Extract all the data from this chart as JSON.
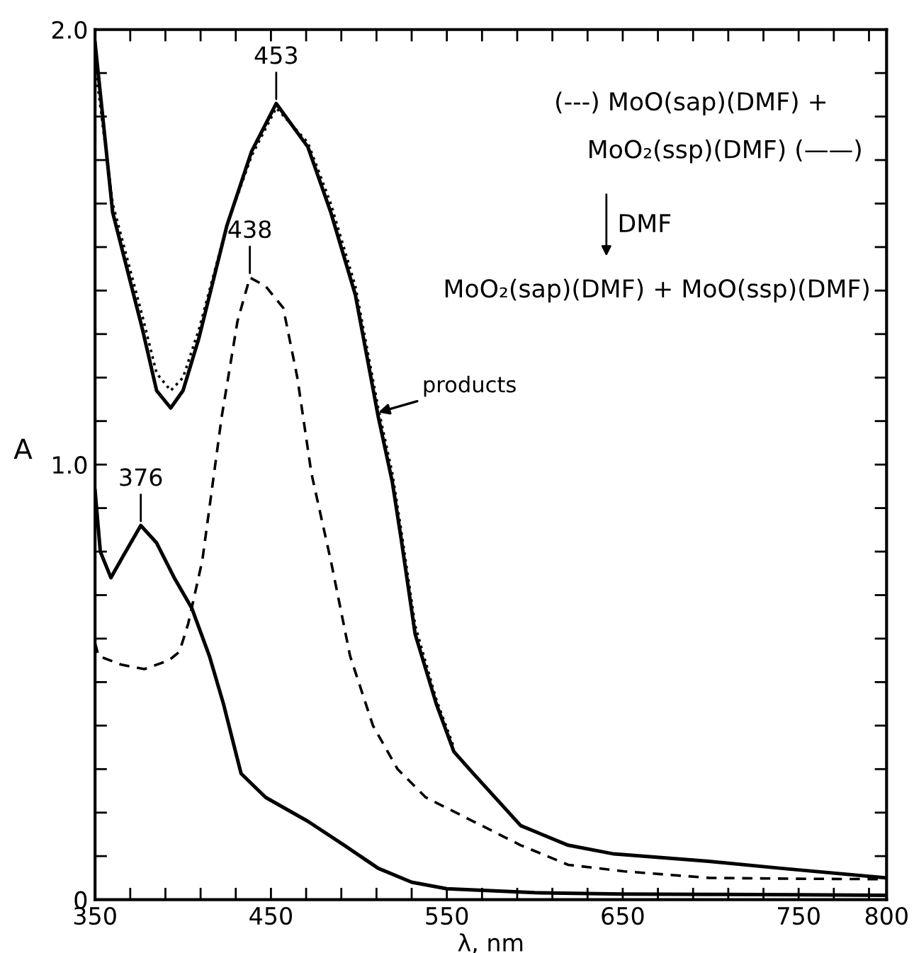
{
  "chart_data": {
    "type": "line",
    "xlabel": "λ, nm",
    "ylabel": "A",
    "xlim": [
      350,
      800
    ],
    "ylim": [
      0,
      2.0
    ],
    "xticks": [
      350,
      {
        "value": 370,
        "label": null
      },
      {
        "value": 390,
        "label": null
      },
      {
        "value": 410,
        "label": null
      },
      {
        "value": 430,
        "label": null
      },
      450,
      {
        "value": 470,
        "label": null
      },
      {
        "value": 490,
        "label": null
      },
      {
        "value": 510,
        "label": null
      },
      {
        "value": 530,
        "label": null
      },
      550,
      {
        "value": 570,
        "label": null
      },
      {
        "value": 590,
        "label": null
      },
      {
        "value": 610,
        "label": null
      },
      {
        "value": 630,
        "label": null
      },
      650,
      {
        "value": 670,
        "label": null
      },
      {
        "value": 690,
        "label": null
      },
      {
        "value": 710,
        "label": null
      },
      {
        "value": 730,
        "label": null
      },
      750,
      {
        "value": 770,
        "label": null
      },
      {
        "value": 790,
        "label": null
      },
      800
    ],
    "yticks": [
      {
        "value": 0,
        "label": "0"
      },
      {
        "value": 0.1,
        "label": null
      },
      {
        "value": 0.2,
        "label": null
      },
      {
        "value": 0.3,
        "label": null
      },
      {
        "value": 0.4,
        "label": null
      },
      {
        "value": 0.5,
        "label": null
      },
      {
        "value": 0.6,
        "label": null
      },
      {
        "value": 0.7,
        "label": null
      },
      {
        "value": 0.8,
        "label": null
      },
      {
        "value": 0.9,
        "label": null
      },
      {
        "value": 1.0,
        "label": "1.0"
      },
      {
        "value": 1.1,
        "label": null
      },
      {
        "value": 1.2,
        "label": null
      },
      {
        "value": 1.3,
        "label": null
      },
      {
        "value": 1.4,
        "label": null
      },
      {
        "value": 1.5,
        "label": null
      },
      {
        "value": 1.6,
        "label": null
      },
      {
        "value": 1.7,
        "label": null
      },
      {
        "value": 1.8,
        "label": null
      },
      {
        "value": 1.9,
        "label": null
      },
      {
        "value": 2.0,
        "label": "2.0"
      }
    ],
    "grid": false,
    "legend": false,
    "marker": "none",
    "series": [
      {
        "color": "#000000",
        "line_style": "solid",
        "x": [
          350,
          353,
          359,
          366,
          376,
          385,
          395,
          405,
          415,
          423,
          433,
          447,
          471,
          492,
          511,
          530,
          550,
          600,
          650,
          700,
          750,
          800
        ],
        "values": [
          0.94,
          0.8,
          0.74,
          0.79,
          0.86,
          0.82,
          0.74,
          0.67,
          0.56,
          0.45,
          0.29,
          0.235,
          0.18,
          0.124,
          0.072,
          0.04,
          0.025,
          0.016,
          0.013,
          0.012,
          0.011,
          0.01
        ]
      },
      {
        "color": "#000000",
        "line_style": "dashed",
        "x": [
          350,
          352,
          365,
          378,
          392,
          398,
          403,
          411,
          418,
          422,
          431,
          438,
          447,
          457,
          465,
          473,
          484,
          495,
          508,
          522,
          538,
          565,
          592,
          619,
          651,
          699,
          750,
          800
        ],
        "values": [
          0.59,
          0.56,
          0.54,
          0.53,
          0.55,
          0.57,
          0.635,
          0.78,
          0.99,
          1.11,
          1.33,
          1.43,
          1.41,
          1.36,
          1.2,
          0.98,
          0.78,
          0.56,
          0.4,
          0.3,
          0.235,
          0.18,
          0.125,
          0.08,
          0.065,
          0.05,
          0.048,
          0.047
        ]
      },
      {
        "color": "#000000",
        "line_style": "solid",
        "x": [
          350,
          360,
          377,
          385,
          393,
          400,
          409,
          425,
          439,
          453,
          471,
          484,
          498,
          511,
          519,
          524,
          532,
          544,
          554,
          565,
          592,
          619,
          645,
          699,
          740,
          800
        ],
        "values": [
          1.97,
          1.58,
          1.31,
          1.17,
          1.13,
          1.17,
          1.29,
          1.55,
          1.72,
          1.83,
          1.73,
          1.58,
          1.39,
          1.11,
          0.96,
          0.83,
          0.61,
          0.45,
          0.34,
          0.29,
          0.17,
          0.125,
          0.105,
          0.088,
          0.072,
          0.05
        ]
      },
      {
        "color": "#000000",
        "line_style": "dotted",
        "x": [
          350,
          360,
          377,
          385,
          393,
          400,
          409,
          425,
          439,
          453,
          471,
          484,
          498,
          511,
          519,
          524,
          532,
          544,
          554
        ],
        "values": [
          1.92,
          1.6,
          1.34,
          1.21,
          1.17,
          1.2,
          1.31,
          1.55,
          1.71,
          1.82,
          1.74,
          1.6,
          1.41,
          1.13,
          0.98,
          0.85,
          0.63,
          0.46,
          0.35
        ]
      }
    ],
    "annotations": [
      {
        "text": "453",
        "x": 453,
        "y": 1.83
      },
      {
        "text": "438",
        "x": 438,
        "y": 1.43
      },
      {
        "text": "376",
        "x": 376,
        "y": 0.86
      },
      {
        "text": "products",
        "x": 511,
        "y": 1.12
      },
      "(---) MoO(sap)(DMF) +",
      "MoO₂(ssp)(DMF) (——)",
      "DMF",
      "MoO₂(sap)(DMF) + MoO(ssp)(DMF)"
    ]
  }
}
